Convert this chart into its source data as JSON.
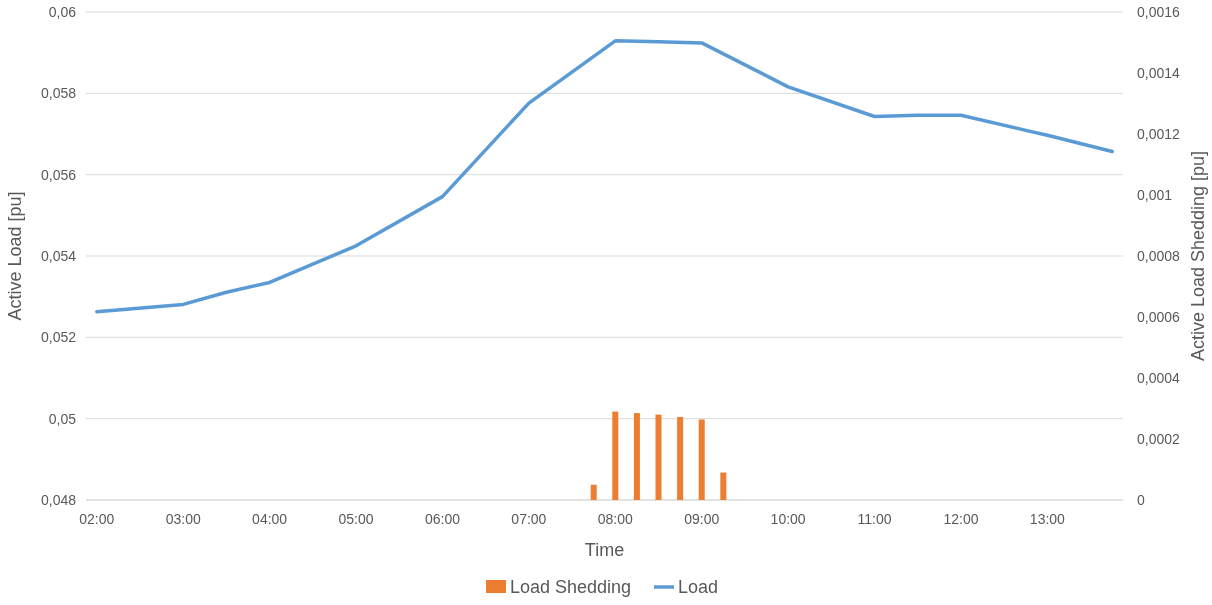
{
  "chart_data": {
    "type": "line",
    "xlabel": "Time",
    "ylabel": "Active Load [pu]",
    "y2label": "Active Load Shedding [pu]",
    "xlim": [
      1.875,
      13.875
    ],
    "xticks": [
      {
        "value": 2,
        "label": "02:00"
      },
      {
        "value": 3,
        "label": "03:00"
      },
      {
        "value": 4,
        "label": "04:00"
      },
      {
        "value": 5,
        "label": "05:00"
      },
      {
        "value": 6,
        "label": "06:00"
      },
      {
        "value": 7,
        "label": "07:00"
      },
      {
        "value": 8,
        "label": "08:00"
      },
      {
        "value": 9,
        "label": "09:00"
      },
      {
        "value": 10,
        "label": "10:00"
      },
      {
        "value": 11,
        "label": "11:00"
      },
      {
        "value": 12,
        "label": "12:00"
      },
      {
        "value": 13,
        "label": "13:00"
      }
    ],
    "ylim": [
      0.048,
      0.06
    ],
    "yticks": [
      {
        "value": 0.048,
        "label": "0,048"
      },
      {
        "value": 0.05,
        "label": "0,05"
      },
      {
        "value": 0.052,
        "label": "0,052"
      },
      {
        "value": 0.054,
        "label": "0,054"
      },
      {
        "value": 0.056,
        "label": "0,056"
      },
      {
        "value": 0.058,
        "label": "0,058"
      },
      {
        "value": 0.06,
        "label": "0,06"
      }
    ],
    "y2lim": [
      0,
      0.0016
    ],
    "y2ticks": [
      0,
      {
        "value": 0.0002,
        "label": "0,0002"
      },
      {
        "value": 0.0004,
        "label": "0,0004"
      },
      {
        "value": 0.0006,
        "label": "0,0006"
      },
      {
        "value": 0.0008,
        "label": "0,0008"
      },
      {
        "value": 0.001,
        "label": "0,001"
      },
      {
        "value": 0.0012,
        "label": "0,0012"
      },
      {
        "value": 0.0014,
        "label": "0,0014"
      },
      {
        "value": 0.0016,
        "label": "0,0016"
      }
    ],
    "grid": "y",
    "legend": "bottom",
    "series": [
      {
        "name": "Load Shedding",
        "type": "bar",
        "axis": "y2",
        "color": "#ed7d31",
        "x": [
          7.75,
          8,
          8.25,
          8.5,
          8.75,
          9,
          9.25
        ],
        "values": [
          5e-05,
          0.00029,
          0.000285,
          0.00028,
          0.000272,
          0.000264,
          9e-05
        ]
      },
      {
        "name": "Load",
        "color": "#5b9bd5",
        "x": [
          2,
          3,
          3.5,
          4,
          5,
          6,
          7,
          8,
          8.5,
          9,
          10,
          11,
          11.5,
          12,
          12.75,
          13,
          13.75
        ],
        "values": [
          0.05263,
          0.05281,
          0.05311,
          0.05335,
          0.05425,
          0.05546,
          0.05776,
          0.05929,
          0.05927,
          0.05924,
          0.05816,
          0.05743,
          0.05746,
          0.05746,
          0.05709,
          0.05697,
          0.05657
        ]
      }
    ]
  }
}
